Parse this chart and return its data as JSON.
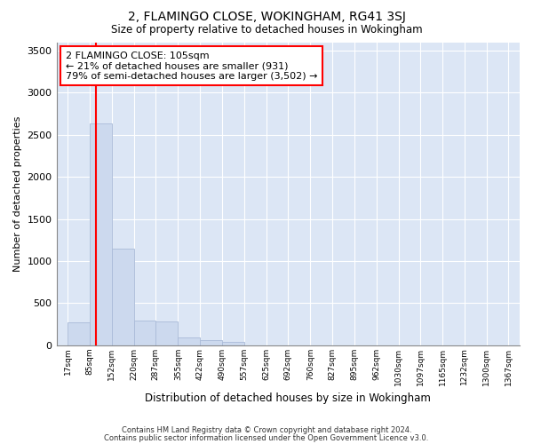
{
  "title": "2, FLAMINGO CLOSE, WOKINGHAM, RG41 3SJ",
  "subtitle": "Size of property relative to detached houses in Wokingham",
  "xlabel": "Distribution of detached houses by size in Wokingham",
  "ylabel": "Number of detached properties",
  "bar_color": "#ccd9ee",
  "bar_edge_color": "#aabbd8",
  "background_color": "#dce6f5",
  "grid_color": "#ffffff",
  "bin_edges": [
    17,
    85,
    152,
    220,
    287,
    355,
    422,
    490,
    557,
    625,
    692,
    760,
    827,
    895,
    962,
    1030,
    1097,
    1165,
    1232,
    1300,
    1367
  ],
  "bin_labels": [
    "17sqm",
    "85sqm",
    "152sqm",
    "220sqm",
    "287sqm",
    "355sqm",
    "422sqm",
    "490sqm",
    "557sqm",
    "625sqm",
    "692sqm",
    "760sqm",
    "827sqm",
    "895sqm",
    "962sqm",
    "1030sqm",
    "1097sqm",
    "1165sqm",
    "1232sqm",
    "1300sqm",
    "1367sqm"
  ],
  "bar_heights": [
    270,
    2640,
    1150,
    290,
    285,
    90,
    60,
    35,
    0,
    0,
    0,
    0,
    0,
    0,
    0,
    0,
    0,
    0,
    0,
    0
  ],
  "ylim": [
    0,
    3600
  ],
  "yticks": [
    0,
    500,
    1000,
    1500,
    2000,
    2500,
    3000,
    3500
  ],
  "vline_x": 105,
  "annotation_line1": "2 FLAMINGO CLOSE: 105sqm",
  "annotation_line2": "← 21% of detached houses are smaller (931)",
  "annotation_line3": "79% of semi-detached houses are larger (3,502) →",
  "annotation_box_color": "white",
  "annotation_border_color": "red",
  "vline_color": "red",
  "footer_line1": "Contains HM Land Registry data © Crown copyright and database right 2024.",
  "footer_line2": "Contains public sector information licensed under the Open Government Licence v3.0."
}
